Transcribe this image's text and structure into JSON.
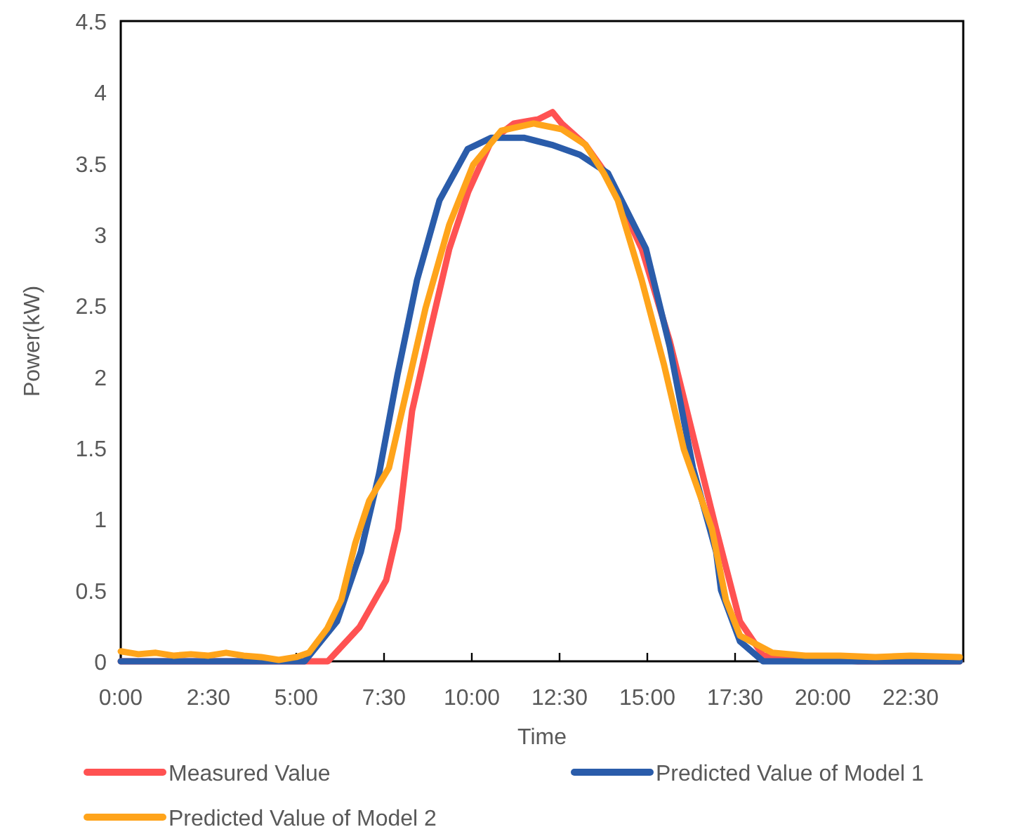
{
  "chart_data": {
    "type": "line",
    "xlabel": "Time",
    "ylabel": "Power(kW)",
    "xlim": [
      0,
      24
    ],
    "xticks": [
      {
        "value": 0,
        "label": "0:00"
      },
      {
        "value": 2.5,
        "label": "2:30"
      },
      {
        "value": 5,
        "label": "5:00"
      },
      {
        "value": 7.5,
        "label": "7:30"
      },
      {
        "value": 10,
        "label": "10:00"
      },
      {
        "value": 12.5,
        "label": "12:30"
      },
      {
        "value": 15,
        "label": "15:00"
      },
      {
        "value": 17.5,
        "label": "17:30"
      },
      {
        "value": 20,
        "label": "20:00"
      },
      {
        "value": 22.5,
        "label": "22:30"
      }
    ],
    "ylim": [
      0,
      4.5
    ],
    "yticks": [
      0,
      0.5,
      1,
      1.5,
      2,
      2.5,
      3,
      3.5,
      4,
      4.5
    ],
    "grid": false,
    "legend": "bottom",
    "marker": "none",
    "line_style": "solid",
    "series": [
      {
        "name": "Measured Value",
        "color": "#ff5252",
        "x": [
          0,
          3,
          5.9,
          6.8,
          7.56,
          7.9,
          8.3,
          8.84,
          9.36,
          9.9,
          10.56,
          11.2,
          11.9,
          12.3,
          12.56,
          13.24,
          13.9,
          14.84,
          15.64,
          16.3,
          16.96,
          17.64,
          18.3,
          21,
          23.9
        ],
        "values": [
          0,
          0,
          0,
          0.24,
          0.57,
          0.93,
          1.76,
          2.35,
          2.9,
          3.3,
          3.66,
          3.78,
          3.81,
          3.86,
          3.78,
          3.63,
          3.4,
          2.9,
          2.25,
          1.59,
          0.93,
          0.28,
          0.04,
          0,
          0
        ]
      },
      {
        "name": "Predicted Value of Model 1",
        "color": "#2a5caa",
        "x": [
          0,
          3,
          5.24,
          6.16,
          6.84,
          7.36,
          7.88,
          8.44,
          9.08,
          9.88,
          10.56,
          11.48,
          12.28,
          13.08,
          13.88,
          14.96,
          15.64,
          16.3,
          16.96,
          17.1,
          17.64,
          18.3,
          21,
          23.9
        ],
        "values": [
          0,
          0,
          0,
          0.28,
          0.77,
          1.32,
          2.01,
          2.68,
          3.24,
          3.6,
          3.68,
          3.68,
          3.63,
          3.56,
          3.43,
          2.9,
          2.21,
          1.36,
          0.77,
          0.5,
          0.14,
          0,
          0,
          0
        ]
      },
      {
        "name": "Predicted Value of Model 2",
        "color": "#ffa41b",
        "x": [
          0,
          0.5,
          1,
          1.5,
          2,
          2.5,
          3,
          3.5,
          4,
          4.5,
          5,
          5.36,
          5.88,
          6.28,
          6.68,
          7.08,
          7.64,
          8.16,
          8.68,
          9.36,
          10.04,
          10.84,
          11.76,
          12.56,
          13.24,
          13.76,
          14.16,
          14.84,
          15.48,
          16.04,
          16.84,
          17.24,
          17.64,
          18.56,
          19.5,
          20.5,
          21.5,
          22.5,
          23.9
        ],
        "values": [
          0.07,
          0.05,
          0.06,
          0.04,
          0.05,
          0.04,
          0.06,
          0.04,
          0.03,
          0.01,
          0.03,
          0.06,
          0.23,
          0.43,
          0.83,
          1.13,
          1.36,
          1.92,
          2.48,
          3.07,
          3.49,
          3.73,
          3.78,
          3.74,
          3.63,
          3.43,
          3.24,
          2.68,
          2.08,
          1.49,
          0.93,
          0.43,
          0.18,
          0.06,
          0.04,
          0.04,
          0.03,
          0.04,
          0.03
        ]
      }
    ]
  }
}
